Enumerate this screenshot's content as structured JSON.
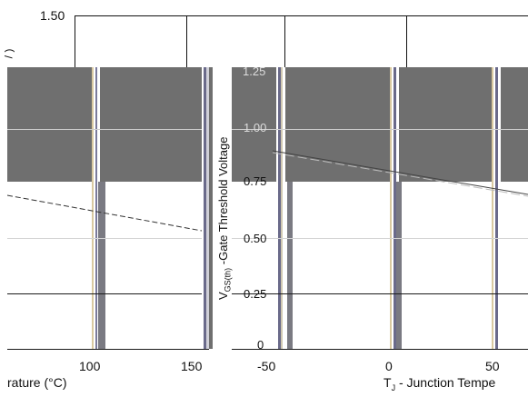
{
  "left_panel": {
    "y_top_tick": "1.50",
    "y_label_fragment": "/ )",
    "x_ticks": [
      "100",
      "150"
    ],
    "x_label_fragment": "rature (°C)"
  },
  "right_panel": {
    "y_ticks": [
      "1.25",
      "1.00",
      "0.75",
      "0.50",
      "0.25",
      "0"
    ],
    "y_label_main": "V",
    "y_label_sub": "GS(th)",
    "y_label_rest": " -Gate Threshold Voltage",
    "x_ticks": [
      "-50",
      "0",
      "50"
    ],
    "x_label_T": "T",
    "x_label_sub": "J",
    "x_label_rest": "  - Junction Tempe"
  },
  "colors": {
    "panel_gray": "#6f6f6f",
    "grid": "#d4d4d4",
    "axis": "#111111"
  }
}
